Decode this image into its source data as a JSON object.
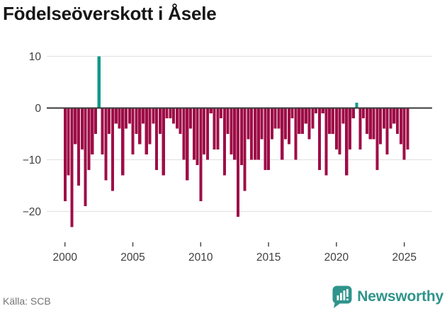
{
  "chart_data": {
    "type": "bar",
    "title": "Födelseöverskott i Åsele",
    "source_label": "Källa: SCB",
    "xlabel": "",
    "ylabel": "",
    "frequency": "quarterly",
    "x_start": "2000-Q1",
    "x_end": "2025-Q2",
    "values": [
      -18,
      -13,
      -23,
      -7,
      -15,
      -8,
      -19,
      -12,
      -9,
      -5,
      10,
      -9,
      -14,
      -5,
      -16,
      -3,
      -4,
      -13,
      -4,
      -3,
      -9,
      -5,
      -7,
      -3,
      -9,
      -7,
      -3,
      -12,
      -5,
      -13,
      -2,
      -2,
      -3,
      -4,
      -5,
      -10,
      -14,
      -4,
      -10,
      -11,
      -18,
      -9,
      -10,
      -1,
      -8,
      -8,
      -2,
      -13,
      -5,
      -9,
      -10,
      -21,
      -11,
      -16,
      -6,
      -10,
      -10,
      -10,
      -6,
      -12,
      -12,
      -6,
      -4,
      -4,
      -10,
      -6,
      -7,
      -2,
      -10,
      -5,
      -5,
      -3,
      -6,
      -4,
      -1,
      -12,
      -1,
      -13,
      -5,
      -5,
      -8,
      -9,
      -3,
      -13,
      -8,
      -2,
      1,
      -8,
      -2,
      -5,
      -6,
      -6,
      -12,
      -7,
      -4,
      -9,
      -4,
      -3,
      -5,
      -7,
      -10,
      -8
    ],
    "yticks": [
      10,
      0,
      -10,
      -20
    ],
    "ylim": [
      -25,
      12
    ],
    "xticks": [
      2000,
      2005,
      2010,
      2015,
      2020,
      2025
    ],
    "grid": true,
    "legend": "none",
    "positive_color": "#13998a",
    "negative_color": "#9e0d47",
    "axis_color": "#3a3a3a",
    "grid_color": "#e4e4e4",
    "tick_label_color": "#3f3f3f"
  },
  "footer": {
    "brand_label": "Newsworthy",
    "brand_color": "#2f948b",
    "brand_icon": "speech-bubble-bar-chart-icon"
  }
}
